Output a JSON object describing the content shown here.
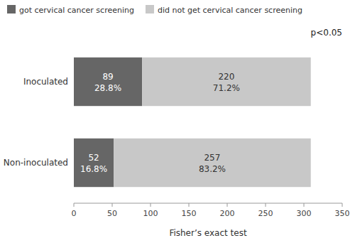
{
  "chart_data": {
    "type": "bar",
    "orientation": "horizontal",
    "stacked": true,
    "data_labels": true,
    "categories": [
      "Inoculated",
      "Non-inoculated"
    ],
    "series": [
      {
        "name": "got cervical cancer screening",
        "color": "#666666",
        "values": [
          89,
          52
        ],
        "percent_labels": [
          "28.8%",
          "16.8%"
        ]
      },
      {
        "name": "did not get cervical cancer screening",
        "color": "#c8c8c8",
        "values": [
          220,
          257
        ],
        "percent_labels": [
          "71.2%",
          "83.2%"
        ]
      }
    ],
    "xlim": [
      0,
      350
    ],
    "xticks": [
      0,
      50,
      100,
      150,
      200,
      250,
      300,
      350
    ],
    "xlabel": "Fisher’s exact test",
    "annotations": [
      "p<0.05"
    ],
    "legend": "top",
    "grid": false
  }
}
